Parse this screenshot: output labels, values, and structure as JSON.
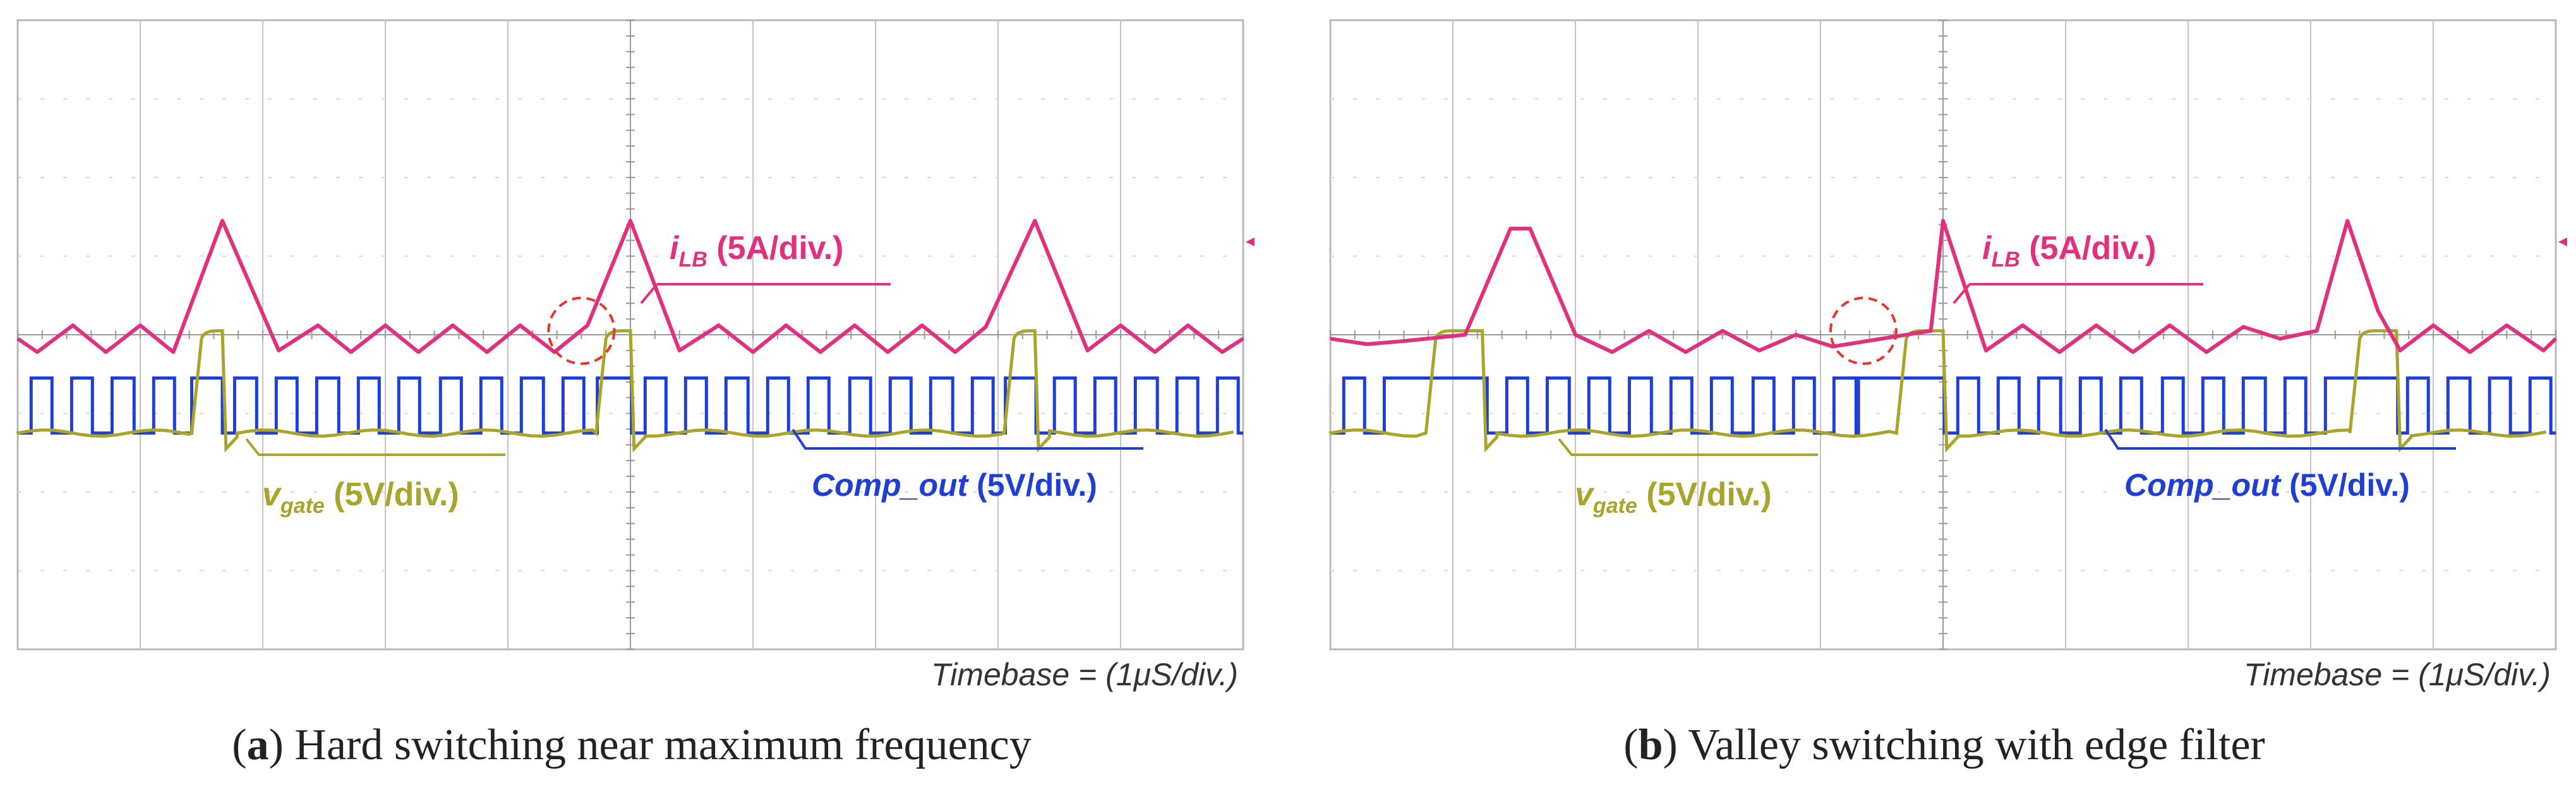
{
  "colors": {
    "current": "#e0307e",
    "gate": "#a8a528",
    "comp": "#1f3fd2",
    "grid": "#c4c4c4",
    "marker": "#e8342a"
  },
  "chart_data": [
    {
      "type": "line",
      "panel_label": "a",
      "caption": "Hard switching near maximum frequency",
      "timebase_label": "Timebase = (1μS/div.)",
      "x_divisions": 10,
      "y_divisions": 8,
      "time_per_div_us": 1,
      "x_range_div": [
        0,
        10
      ],
      "y_range_div": [
        -4,
        4
      ],
      "pulse_period_div": 0.334,
      "series": [
        {
          "name": "current",
          "label_main": "i",
          "label_sub": "LB",
          "label_scale": " (5A/div.)",
          "points_div": [
            [
              0,
              -0.05
            ],
            [
              0.16,
              -0.22
            ],
            [
              0.45,
              0.12
            ],
            [
              0.72,
              -0.22
            ],
            [
              1,
              0.12
            ],
            [
              1.27,
              -0.22
            ],
            [
              1.67,
              1.45
            ],
            [
              2.13,
              -0.2
            ],
            [
              2.45,
              0.12
            ],
            [
              2.72,
              -0.22
            ],
            [
              3,
              0.12
            ],
            [
              3.27,
              -0.22
            ],
            [
              3.55,
              0.12
            ],
            [
              3.83,
              -0.22
            ],
            [
              4.1,
              0.12
            ],
            [
              4.38,
              -0.22
            ],
            [
              4.65,
              0.12
            ],
            [
              5,
              1.45
            ],
            [
              5.4,
              -0.2
            ],
            [
              5.72,
              0.12
            ],
            [
              6,
              -0.22
            ],
            [
              6.27,
              0.12
            ],
            [
              6.55,
              -0.22
            ],
            [
              6.83,
              0.12
            ],
            [
              7.1,
              -0.22
            ],
            [
              7.38,
              0.12
            ],
            [
              7.65,
              -0.22
            ],
            [
              7.9,
              0.1
            ],
            [
              8.3,
              1.45
            ],
            [
              8.73,
              -0.2
            ],
            [
              9,
              0.12
            ],
            [
              9.28,
              -0.22
            ],
            [
              9.55,
              0.12
            ],
            [
              9.83,
              -0.22
            ],
            [
              10,
              -0.05
            ]
          ]
        },
        {
          "name": "gate",
          "label_main": "v",
          "label_sub": "gate",
          "label_scale": " (5V/div.)",
          "high_intervals_div": [
            [
              1.42,
              1.67
            ],
            [
              4.72,
              5.0
            ],
            [
              8.05,
              8.3
            ]
          ],
          "low_level_div": -1.25,
          "high_level_div": 0.05
        },
        {
          "name": "comp_out",
          "label": "Comp_out",
          "label_scale": " (5V/div.)",
          "low_level_div": -1.25,
          "high_level_div": -0.55,
          "pulse_start_div": 0.1,
          "held_high_intervals_div": [
            [
              1.42,
              1.67
            ],
            [
              4.72,
              5.0
            ],
            [
              8.05,
              8.3
            ]
          ]
        }
      ],
      "annotation": {
        "type": "dashed-circle",
        "center_div": [
          4.6,
          0.05
        ],
        "note": "switching event"
      }
    },
    {
      "type": "line",
      "panel_label": "b",
      "caption": "Valley switching with edge filter",
      "timebase_label": "Timebase = (1μS/div.)",
      "x_divisions": 10,
      "y_divisions": 8,
      "time_per_div_us": 1,
      "x_range_div": [
        0,
        10
      ],
      "y_range_div": [
        -4,
        4
      ],
      "pulse_period_div": 0.334,
      "series": [
        {
          "name": "current",
          "label_main": "i",
          "label_sub": "LB",
          "label_scale": " (5A/div.)",
          "points_div": [
            [
              0,
              -0.05
            ],
            [
              0.3,
              -0.12
            ],
            [
              0.6,
              -0.08
            ],
            [
              1.1,
              0
            ],
            [
              1.47,
              1.35
            ],
            [
              1.63,
              1.35
            ],
            [
              2.0,
              0
            ],
            [
              2.3,
              -0.22
            ],
            [
              2.6,
              0.05
            ],
            [
              2.9,
              -0.22
            ],
            [
              3.2,
              0.05
            ],
            [
              3.5,
              -0.2
            ],
            [
              3.8,
              0.0
            ],
            [
              4.1,
              -0.15
            ],
            [
              4.5,
              -0.05
            ],
            [
              4.9,
              0.05
            ],
            [
              5.0,
              1.45
            ],
            [
              5.35,
              -0.2
            ],
            [
              5.65,
              0.12
            ],
            [
              5.95,
              -0.22
            ],
            [
              6.25,
              0.12
            ],
            [
              6.55,
              -0.22
            ],
            [
              6.85,
              0.12
            ],
            [
              7.15,
              -0.22
            ],
            [
              7.45,
              0.1
            ],
            [
              7.75,
              -0.05
            ],
            [
              8.05,
              0.05
            ],
            [
              8.3,
              1.45
            ],
            [
              8.55,
              0.3
            ],
            [
              8.73,
              -0.2
            ],
            [
              9.0,
              0.12
            ],
            [
              9.3,
              -0.22
            ],
            [
              9.6,
              0.12
            ],
            [
              9.9,
              -0.2
            ],
            [
              10,
              -0.05
            ]
          ]
        },
        {
          "name": "gate",
          "label_main": "v",
          "label_sub": "gate",
          "label_scale": " (5V/div.)",
          "high_intervals_div": [
            [
              0.78,
              1.24
            ],
            [
              4.62,
              5.0
            ],
            [
              8.32,
              8.7
            ]
          ],
          "low_level_div": -1.25,
          "high_level_div": 0.05
        },
        {
          "name": "comp_out",
          "label": "Comp_out",
          "label_scale": " (5V/div.)",
          "low_level_div": -1.25,
          "high_level_div": -0.55,
          "pulse_start_div": 0.1,
          "held_high_intervals_div": [
            [
              0.6,
              1.22
            ],
            [
              4.3,
              5.0
            ],
            [
              8.25,
              8.7
            ]
          ]
        }
      ],
      "annotation": {
        "type": "dashed-circle",
        "center_div": [
          4.35,
          0.05
        ],
        "note": "switching event"
      }
    }
  ]
}
